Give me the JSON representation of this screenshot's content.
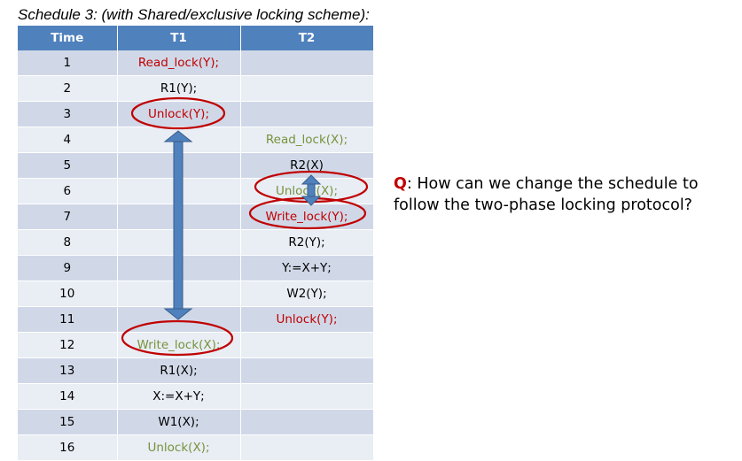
{
  "title": "Schedule 3:  (with Shared/exclusive locking scheme):",
  "table": {
    "headers": [
      "Time",
      "T1",
      "T2"
    ],
    "rows": [
      {
        "time": "1",
        "t1": "Read_lock(Y);",
        "t1_color": "red",
        "t2": "",
        "t2_color": "black"
      },
      {
        "time": "2",
        "t1": "R1(Y);",
        "t1_color": "black",
        "t2": "",
        "t2_color": "black"
      },
      {
        "time": "3",
        "t1": "Unlock(Y);",
        "t1_color": "red",
        "t2": "",
        "t2_color": "black"
      },
      {
        "time": "4",
        "t1": "",
        "t1_color": "black",
        "t2": "Read_lock(X);",
        "t2_color": "green"
      },
      {
        "time": "5",
        "t1": "",
        "t1_color": "black",
        "t2": "R2(X)",
        "t2_color": "black"
      },
      {
        "time": "6",
        "t1": "",
        "t1_color": "black",
        "t2": "Unlock(X);",
        "t2_color": "green"
      },
      {
        "time": "7",
        "t1": "",
        "t1_color": "black",
        "t2": "Write_lock(Y);",
        "t2_color": "red"
      },
      {
        "time": "8",
        "t1": "",
        "t1_color": "black",
        "t2": "R2(Y);",
        "t2_color": "black"
      },
      {
        "time": "9",
        "t1": "",
        "t1_color": "black",
        "t2": "Y:=X+Y;",
        "t2_color": "black"
      },
      {
        "time": "10",
        "t1": "",
        "t1_color": "black",
        "t2": "W2(Y);",
        "t2_color": "black"
      },
      {
        "time": "11",
        "t1": "",
        "t1_color": "black",
        "t2": "Unlock(Y);",
        "t2_color": "red"
      },
      {
        "time": "12",
        "t1": "Write_lock(X);",
        "t1_color": "green",
        "t2": "",
        "t2_color": "black"
      },
      {
        "time": "13",
        "t1": "R1(X);",
        "t1_color": "black",
        "t2": "",
        "t2_color": "black"
      },
      {
        "time": "14",
        "t1": "X:=X+Y;",
        "t1_color": "black",
        "t2": "",
        "t2_color": "black"
      },
      {
        "time": "15",
        "t1": "W1(X);",
        "t1_color": "black",
        "t2": "",
        "t2_color": "black"
      },
      {
        "time": "16",
        "t1": "Unlock(X);",
        "t1_color": "green",
        "t2": "",
        "t2_color": "black"
      }
    ]
  },
  "question": {
    "marker": "Q",
    "text": ": How can we change the schedule to follow the two-phase locking protocol?"
  },
  "colors": {
    "header_bg": "#4f81bd",
    "row_odd": "#d0d8e8",
    "row_even": "#e9edf4",
    "red": "#c00000",
    "green": "#77933c",
    "circle": "#c00000",
    "arrow": "#4f81bd"
  }
}
